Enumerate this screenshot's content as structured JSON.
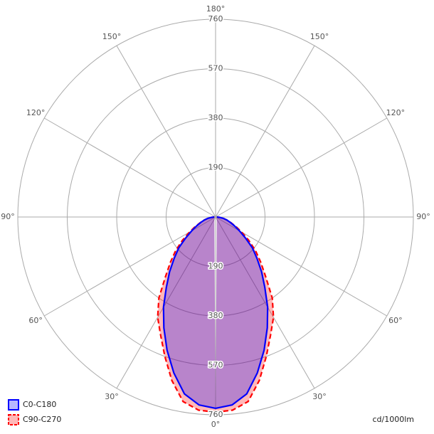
{
  "chart_data": {
    "type": "polar",
    "units": "cd/1000lm",
    "x": [
      0,
      5,
      10,
      15,
      20,
      25,
      30,
      35,
      40,
      45,
      50,
      55,
      60,
      65,
      70,
      75,
      80,
      85,
      90
    ],
    "series": [
      {
        "name": "C90-C270",
        "color": "#ff0000",
        "dashed": true,
        "values": [
          750,
          745,
          720,
          650,
          570,
          500,
          445,
          380,
          300,
          245,
          200,
          155,
          115,
          85,
          62,
          45,
          30,
          15,
          5
        ]
      },
      {
        "name": "C0-C180",
        "color": "#0000ff",
        "dashed": false,
        "values": [
          735,
          725,
          690,
          620,
          545,
          470,
          400,
          330,
          275,
          225,
          185,
          140,
          105,
          80,
          60,
          45,
          30,
          15,
          5
        ]
      }
    ],
    "rlim": [
      0,
      760
    ],
    "rticks": [
      190,
      380,
      570,
      760
    ],
    "angle_ticks": [
      {
        "value": 0,
        "label": "0°"
      },
      {
        "value": 30,
        "label": "30°"
      },
      {
        "value": 60,
        "label": "60°"
      },
      {
        "value": 90,
        "label": "90°"
      },
      {
        "value": 120,
        "label": "120°"
      },
      {
        "value": 150,
        "label": "150°"
      },
      {
        "value": 180,
        "label": "180°"
      }
    ],
    "fill_opacity": 0.28,
    "grid": true
  }
}
